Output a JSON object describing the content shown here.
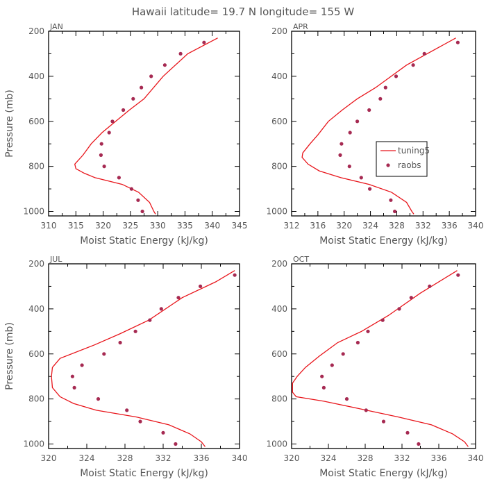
{
  "figure": {
    "title": "Hawaii  latitude= 19.7 N longitude= 155 W",
    "colors": {
      "model": "#e8151b",
      "obs": "#a62a52",
      "frame": "#000000",
      "text": "#555555"
    }
  },
  "chart_data": [
    {
      "type": "line",
      "panel": "JAN",
      "xlabel": "Moist Static Energy (kJ/kg)",
      "ylabel": "Pressure (mb)",
      "xlim": [
        310,
        345
      ],
      "ylim": [
        1020,
        200
      ],
      "xticks": [
        310,
        315,
        320,
        325,
        330,
        335,
        340,
        345
      ],
      "yticks": [
        200,
        400,
        600,
        800,
        1000
      ],
      "series": [
        {
          "name": "tuning5",
          "x": [
            329.6,
            329.3,
            328.5,
            326.5,
            323.5,
            318.5,
            316.5,
            315.0,
            314.8,
            316.3,
            317.8,
            319.8,
            322.3,
            324.8,
            327.5,
            331.0,
            335.5,
            341.0
          ],
          "y": [
            1012,
            1000,
            960,
            915,
            880,
            850,
            830,
            810,
            790,
            750,
            700,
            650,
            600,
            550,
            500,
            400,
            300,
            230
          ]
        },
        {
          "name": "raobs",
          "x": [
            327.2,
            326.4,
            325.2,
            322.9,
            320.2,
            319.6,
            319.7,
            321.1,
            321.7,
            323.7,
            325.5,
            327.0,
            328.8,
            331.3,
            334.2,
            338.5
          ],
          "y": [
            1000,
            950,
            900,
            850,
            800,
            750,
            700,
            650,
            600,
            550,
            500,
            450,
            400,
            350,
            300,
            250
          ]
        }
      ]
    },
    {
      "type": "line",
      "panel": "APR",
      "xlabel": "Moist Static Energy (kJ/kg)",
      "ylabel": "",
      "xlim": [
        312,
        340
      ],
      "ylim": [
        1020,
        200
      ],
      "xticks": [
        312,
        316,
        320,
        324,
        328,
        332,
        336,
        340
      ],
      "yticks": [
        200,
        400,
        600,
        800,
        1000
      ],
      "legend": {
        "placement": "center-right",
        "entries": [
          "tuning5",
          "raobs"
        ]
      },
      "series": [
        {
          "name": "tuning5",
          "x": [
            330.6,
            330.3,
            329.5,
            327.2,
            323.8,
            319.5,
            316.2,
            314.5,
            313.6,
            313.7,
            314.8,
            316.0,
            317.6,
            319.7,
            322.0,
            324.8,
            329.5,
            337.0
          ],
          "y": [
            1012,
            1000,
            960,
            915,
            880,
            850,
            820,
            790,
            760,
            740,
            700,
            660,
            600,
            550,
            500,
            450,
            350,
            230
          ]
        },
        {
          "name": "raobs",
          "x": [
            327.7,
            327.1,
            323.9,
            322.6,
            320.8,
            319.4,
            319.6,
            320.9,
            322.0,
            323.8,
            325.5,
            326.3,
            327.9,
            330.5,
            332.2,
            337.3
          ],
          "y": [
            1000,
            950,
            900,
            850,
            800,
            750,
            700,
            650,
            600,
            550,
            500,
            450,
            400,
            350,
            300,
            250
          ]
        }
      ]
    },
    {
      "type": "line",
      "panel": "JUL",
      "xlabel": "Moist Static Energy (kJ/kg)",
      "ylabel": "Pressure (mb)",
      "xlim": [
        320,
        340
      ],
      "ylim": [
        1020,
        200
      ],
      "xticks": [
        320,
        324,
        328,
        332,
        336,
        340
      ],
      "yticks": [
        200,
        400,
        600,
        800,
        1000
      ],
      "series": [
        {
          "name": "tuning5",
          "x": [
            336.4,
            336.0,
            334.8,
            332.6,
            329.2,
            325.0,
            322.6,
            321.2,
            320.4,
            320.3,
            320.4,
            321.2,
            324.8,
            327.5,
            330.5,
            334.0,
            337.5,
            339.5
          ],
          "y": [
            1012,
            990,
            955,
            915,
            880,
            850,
            820,
            790,
            750,
            700,
            660,
            620,
            560,
            510,
            450,
            350,
            280,
            230
          ]
        },
        {
          "name": "raobs",
          "x": [
            333.3,
            332.0,
            329.6,
            328.2,
            325.2,
            322.7,
            322.5,
            323.5,
            325.8,
            327.5,
            329.1,
            330.6,
            331.8,
            333.6,
            335.9,
            339.5
          ],
          "y": [
            1000,
            950,
            900,
            850,
            800,
            750,
            700,
            650,
            600,
            550,
            500,
            450,
            400,
            350,
            300,
            250
          ]
        }
      ]
    },
    {
      "type": "line",
      "panel": "OCT",
      "xlabel": "Moist Static Energy (kJ/kg)",
      "ylabel": "",
      "xlim": [
        320,
        340
      ],
      "ylim": [
        1020,
        200
      ],
      "xticks": [
        320,
        324,
        328,
        332,
        336,
        340
      ],
      "yticks": [
        200,
        400,
        600,
        800,
        1000
      ],
      "series": [
        {
          "name": "tuning5",
          "x": [
            339.2,
            338.8,
            337.5,
            335.2,
            331.6,
            327.0,
            323.5,
            320.5,
            320.1,
            320.1,
            320.6,
            321.5,
            323.0,
            325.0,
            327.6,
            330.5,
            334.0,
            338.0
          ],
          "y": [
            1012,
            990,
            955,
            915,
            880,
            840,
            810,
            790,
            770,
            730,
            700,
            660,
            610,
            550,
            500,
            430,
            330,
            230
          ]
        },
        {
          "name": "raobs",
          "x": [
            333.8,
            332.6,
            330.0,
            328.1,
            326.0,
            323.5,
            323.3,
            324.4,
            325.6,
            327.2,
            328.3,
            329.9,
            331.7,
            333.0,
            335.0,
            338.1
          ],
          "y": [
            1000,
            950,
            900,
            850,
            800,
            750,
            700,
            650,
            600,
            550,
            500,
            450,
            400,
            350,
            300,
            250
          ]
        }
      ]
    }
  ]
}
